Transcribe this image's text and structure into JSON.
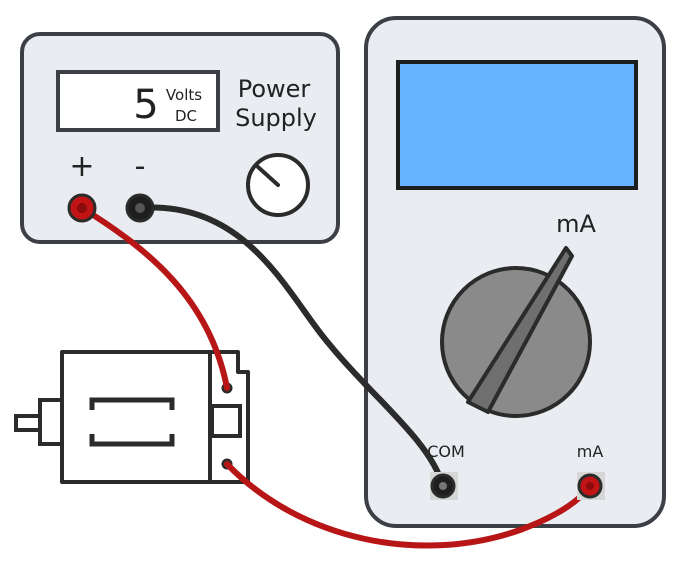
{
  "power_supply": {
    "display_value": "5",
    "display_unit_top": "Volts",
    "display_unit_bottom": "DC",
    "title_line1": "Power",
    "title_line2": "Supply",
    "plus_label": "+",
    "minus_label": "-"
  },
  "multimeter": {
    "dial_range_label": "mA",
    "com_jack_label": "COM",
    "ma_jack_label": "mA"
  },
  "colors": {
    "case_fill": "#e9ecf1",
    "case_stroke": "#3c3f45",
    "screen_blue": "#66b3ff",
    "dial_gray": "#8a8a8a",
    "wire_red": "#b81616",
    "wire_black": "#2b2b2b",
    "jack_red": "#c21414",
    "jack_black": "#1e1e1e"
  },
  "icons": {
    "motor": "dc-motor-icon",
    "knob": "voltage-knob-icon"
  }
}
